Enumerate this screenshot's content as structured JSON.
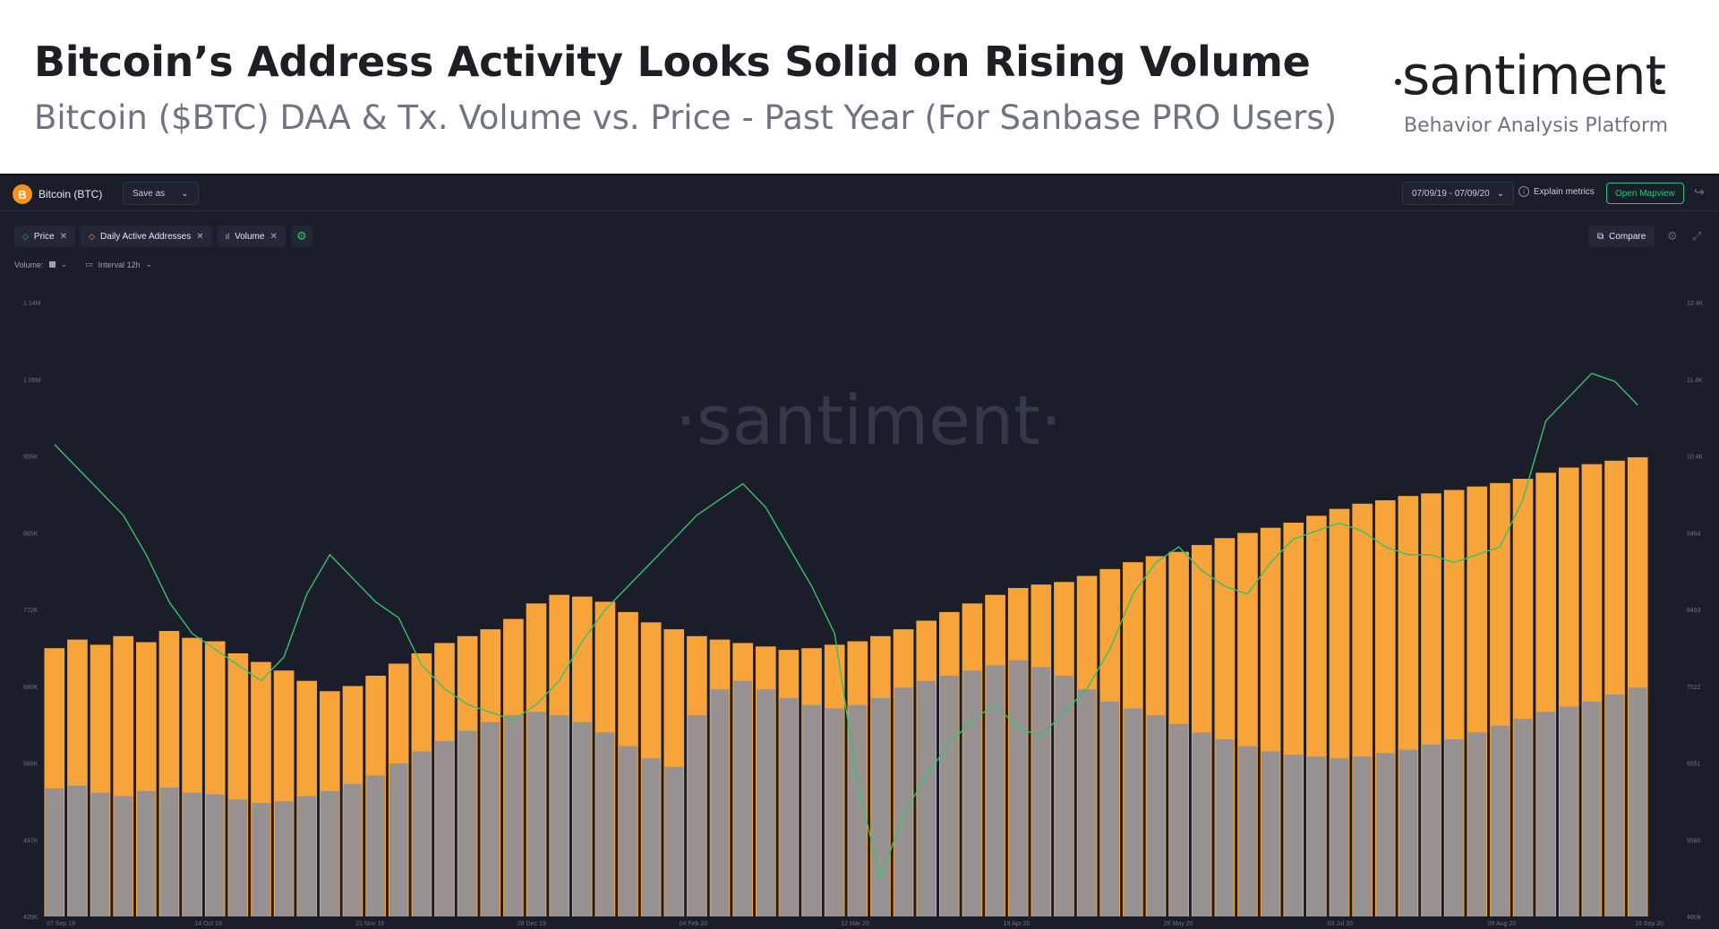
{
  "header": {
    "title": "Bitcoin’s Address Activity Looks Solid on Rising Volume",
    "subtitle": "Bitcoin ($BTC) DAA & Tx. Volume vs. Price - Past Year (For Sanbase PRO Users)",
    "brand": "santiment",
    "brand_tagline": "Behavior Analysis Platform"
  },
  "toolbar": {
    "asset_icon": "B",
    "asset_name": "Bitcoin (BTC)",
    "save_as": "Save as",
    "date_range": "07/09/19 - 07/09/20",
    "explain_metrics": "Explain metrics",
    "open_mapview": "Open Mapview"
  },
  "metrics": {
    "price": "Price",
    "daa": "Daily Active Addresses",
    "volume": "Volume",
    "compare": "Compare"
  },
  "options": {
    "volume_label": "Volume:",
    "interval_label": "Interval 12h"
  },
  "watermark": "·santiment·",
  "colors": {
    "background": "#1b1e2a",
    "price_line": "#36c26c",
    "daa_bars": "#f7a43a",
    "volume_bars": "#8e8f9a"
  },
  "chart_data": {
    "type": "bar",
    "left_axis": {
      "ticks": [
        "1.14M",
        "1.05M",
        "955K",
        "865K",
        "772K",
        "680K",
        "588K",
        "497K",
        "426K"
      ],
      "range": [
        426000,
        1140000
      ]
    },
    "right_axis": {
      "ticks": [
        "12.4K",
        "11.4K",
        "10.4K",
        "9464",
        "8493",
        "7522",
        "6551",
        "5580",
        "4609"
      ],
      "range": [
        4609,
        12400
      ]
    },
    "x_ticks": [
      "07 Sep 19",
      "14 Oct 19",
      "21 Nov 19",
      "28 Dec 19",
      "04 Feb 20",
      "12 Mar 20",
      "19 Apr 20",
      "26 May 20",
      "03 Jul 20",
      "09 Aug 20",
      "16 Sep 20"
    ],
    "grid": false,
    "series": [
      {
        "name": "Daily Active Addresses",
        "kind": "bar",
        "axis": "left",
        "values": [
          738000,
          748000,
          742000,
          752000,
          745000,
          758000,
          750000,
          746000,
          732000,
          722000,
          712000,
          700000,
          688000,
          694000,
          706000,
          720000,
          732000,
          744000,
          752000,
          760000,
          772000,
          790000,
          800000,
          798000,
          792000,
          780000,
          768000,
          760000,
          752000,
          748000,
          744000,
          740000,
          736000,
          738000,
          742000,
          746000,
          752000,
          760000,
          770000,
          780000,
          790000,
          800000,
          808000,
          812000,
          815000,
          822000,
          830000,
          838000,
          845000,
          850000,
          858000,
          866000,
          872000,
          878000,
          884000,
          892000,
          900000,
          906000,
          910000,
          915000,
          918000,
          922000,
          926000,
          930000,
          935000,
          942000,
          948000,
          952000,
          956000,
          960000
        ]
      },
      {
        "name": "Volume",
        "kind": "bar",
        "axis": "left",
        "values": [
          575000,
          578000,
          570000,
          566000,
          572000,
          576000,
          570000,
          568000,
          562000,
          558000,
          560000,
          566000,
          572000,
          580000,
          590000,
          604000,
          618000,
          630000,
          642000,
          652000,
          660000,
          664000,
          660000,
          652000,
          640000,
          624000,
          610000,
          600000,
          660000,
          690000,
          700000,
          690000,
          680000,
          672000,
          668000,
          672000,
          680000,
          692000,
          700000,
          706000,
          712000,
          718000,
          724000,
          716000,
          706000,
          690000,
          676000,
          668000,
          660000,
          650000,
          640000,
          632000,
          624000,
          618000,
          614000,
          612000,
          610000,
          612000,
          616000,
          620000,
          626000,
          632000,
          640000,
          648000,
          656000,
          664000,
          670000,
          676000,
          684000,
          692000
        ]
      },
      {
        "name": "Price",
        "kind": "line",
        "axis": "right",
        "values": [
          10600,
          10300,
          10000,
          9700,
          9200,
          8600,
          8200,
          8000,
          7800,
          7600,
          7900,
          8700,
          9200,
          8900,
          8600,
          8400,
          7800,
          7500,
          7300,
          7200,
          7100,
          7300,
          7600,
          8100,
          8500,
          8800,
          9100,
          9400,
          9700,
          9900,
          10100,
          9800,
          9300,
          8800,
          8200,
          6300,
          5100,
          5900,
          6400,
          6800,
          7100,
          7300,
          7000,
          6900,
          7200,
          7500,
          8000,
          8700,
          9100,
          9300,
          9000,
          8800,
          8700,
          9100,
          9400,
          9500,
          9600,
          9500,
          9300,
          9200,
          9200,
          9100,
          9200,
          9300,
          9900,
          10900,
          11200,
          11500,
          11400,
          11100
        ]
      }
    ]
  }
}
